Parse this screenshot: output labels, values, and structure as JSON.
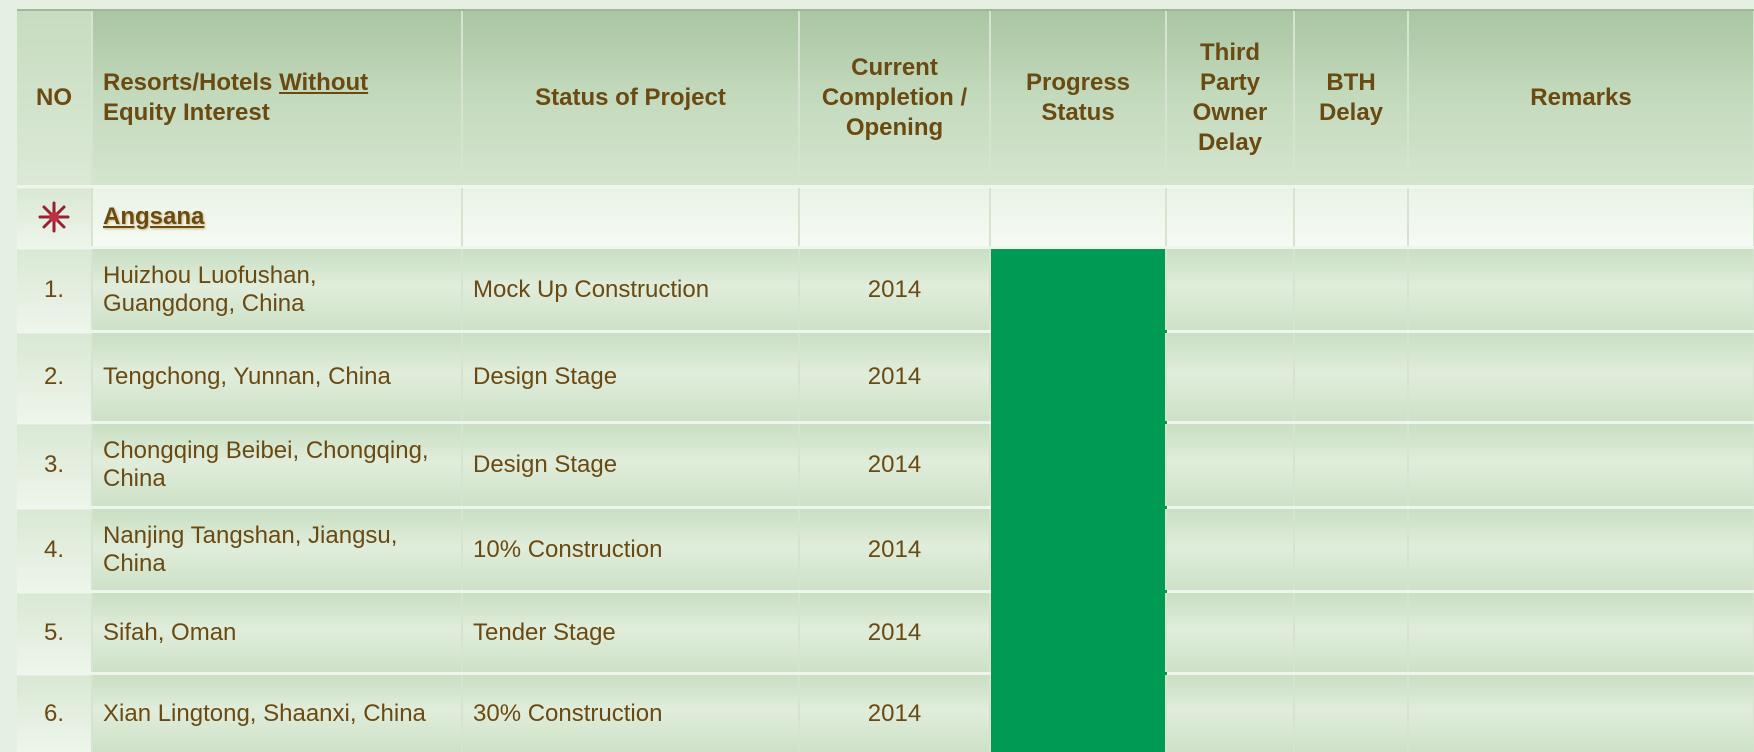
{
  "table": {
    "headers": [
      "NO",
      {
        "before": "Resorts/Hotels",
        "underlined": "Without",
        "after": "Equity Interest"
      },
      "Status of Project",
      "Current Completion / Opening",
      "Progress Status",
      "Third Party Owner Delay",
      "BTH Delay",
      "Remarks"
    ],
    "section": "Angsana",
    "rows": [
      [
        "1.",
        "Huizhou Luofushan, Guangdong, China",
        "Mock Up Construction",
        "2014"
      ],
      [
        "2.",
        "Tengchong, Yunnan, China",
        "Design Stage",
        "2014"
      ],
      [
        "3.",
        "Chongqing Beibei, Chongqing, China",
        "Design Stage",
        "2014"
      ],
      [
        "4.",
        "Nanjing Tangshan, Jiangsu, China",
        "10% Construction",
        "2014"
      ],
      [
        "5.",
        "Sifah, Oman",
        "Tender Stage",
        "2014"
      ],
      [
        "6.",
        "Xian Lingtong, Shaanxi, China",
        "30% Construction",
        "2014"
      ]
    ]
  }
}
